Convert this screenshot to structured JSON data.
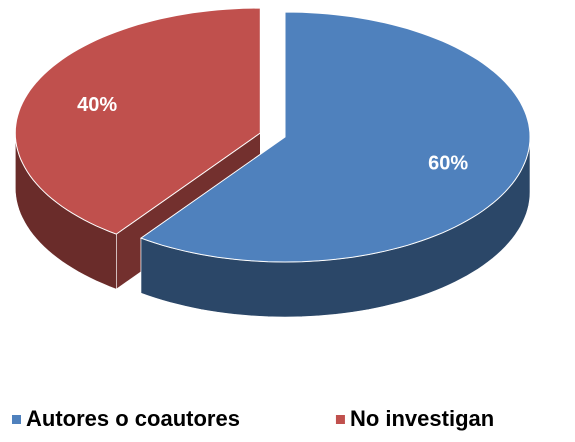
{
  "chart_data": {
    "type": "pie",
    "categories": [
      "Autores o coautores",
      "No investigan"
    ],
    "values": [
      60,
      40
    ],
    "value_labels": [
      "60%",
      "40%"
    ],
    "colors": [
      "#4f81bd",
      "#c0504d"
    ],
    "legend": "bottom"
  }
}
